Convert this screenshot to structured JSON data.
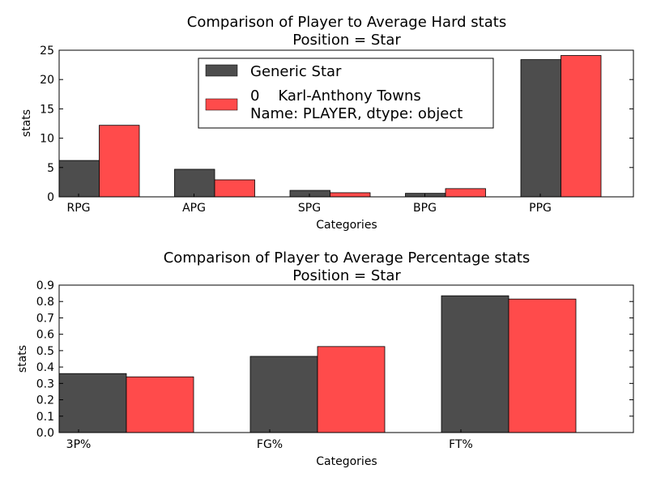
{
  "chart_data": [
    {
      "type": "bar",
      "title": "Comparison of Player to Average Hard stats",
      "subtitle": "Position = Star",
      "xlabel": "Categories",
      "ylabel": "stats",
      "categories": [
        "RPG",
        "APG",
        "SPG",
        "BPG",
        "PPG"
      ],
      "ylim": [
        0,
        25
      ],
      "yticks": [
        0,
        5,
        10,
        15,
        20,
        25
      ],
      "series": [
        {
          "name": "Generic Star",
          "color": "#4d4d4d",
          "values": [
            6.2,
            4.7,
            1.1,
            0.6,
            23.4
          ]
        },
        {
          "name": "0    Karl-Anthony Towns",
          "name_line2": "Name: PLAYER, dtype: object",
          "color": "#ff4b4b",
          "values": [
            12.2,
            2.9,
            0.7,
            1.4,
            24.1
          ]
        }
      ],
      "legend": "top-center",
      "grid": false
    },
    {
      "type": "bar",
      "title": "Comparison of Player to Average Percentage stats",
      "subtitle": "Position = Star",
      "xlabel": "Categories",
      "ylabel": "stats",
      "categories": [
        "3P%",
        "FG%",
        "FT%"
      ],
      "ylim": [
        0,
        0.9
      ],
      "yticks": [
        "0.0",
        "0.1",
        "0.2",
        "0.3",
        "0.4",
        "0.5",
        "0.6",
        "0.7",
        "0.8",
        "0.9"
      ],
      "series": [
        {
          "color": "#4d4d4d",
          "values": [
            0.36,
            0.465,
            0.835
          ]
        },
        {
          "color": "#ff4b4b",
          "values": [
            0.34,
            0.525,
            0.815
          ]
        }
      ],
      "grid": false
    }
  ]
}
